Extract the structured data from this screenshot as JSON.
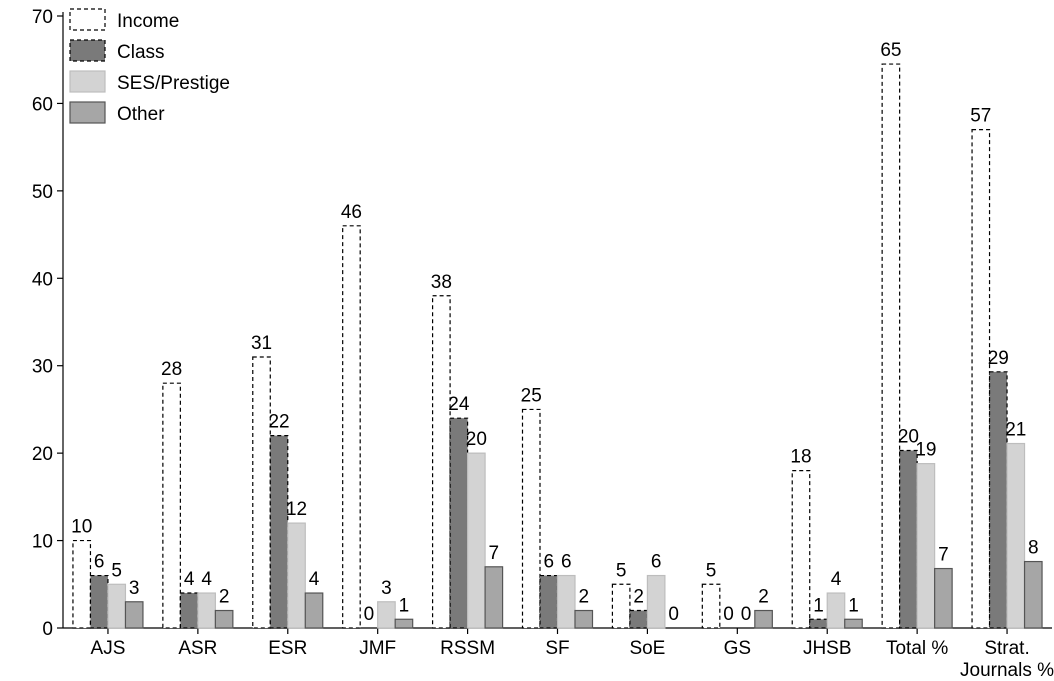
{
  "chart_data": {
    "type": "bar",
    "categories": [
      [
        "AJS"
      ],
      [
        "ASR"
      ],
      [
        "ESR"
      ],
      [
        "JMF"
      ],
      [
        "RSSM"
      ],
      [
        "SF"
      ],
      [
        "SoE"
      ],
      [
        "GS"
      ],
      [
        "JHSB"
      ],
      [
        "Total %"
      ],
      [
        "Strat.",
        "Journals %"
      ]
    ],
    "series": [
      {
        "name": "Income",
        "values": [
          10,
          28,
          31,
          46,
          38,
          25,
          5,
          5,
          18,
          64.5,
          57
        ],
        "labels": [
          "10",
          "28",
          "31",
          "46",
          "38",
          "25",
          "5",
          "5",
          "18",
          "65",
          "57"
        ]
      },
      {
        "name": "Class",
        "values": [
          6,
          4,
          22,
          0,
          24,
          6,
          2,
          0,
          1,
          20.3,
          29.3
        ],
        "labels": [
          "6",
          "4",
          "22",
          "0",
          "24",
          "6",
          "2",
          "0",
          "1",
          "20",
          "29"
        ]
      },
      {
        "name": "SES/Prestige",
        "values": [
          5,
          4,
          12,
          3,
          20,
          6,
          6,
          0,
          4,
          18.8,
          21.1
        ],
        "labels": [
          "5",
          "4",
          "12",
          "3",
          "20",
          "6",
          "6",
          "0",
          "4",
          "19",
          "21"
        ]
      },
      {
        "name": "Other",
        "values": [
          3,
          2,
          4,
          1,
          7,
          2,
          0,
          2,
          1,
          6.8,
          7.6
        ],
        "labels": [
          "3",
          "2",
          "4",
          "1",
          "7",
          "2",
          "0",
          "2",
          "1",
          "7",
          "8"
        ]
      }
    ],
    "ylim": [
      0,
      70
    ],
    "yticks": [
      0,
      10,
      20,
      30,
      40,
      50,
      60,
      70
    ],
    "legend_position": "top-left",
    "grid": false,
    "colors": {
      "Income": "#ffffff",
      "Class": "#7a7a7a",
      "SES/Prestige": "#d3d3d3",
      "Other": "#a6a6a6"
    }
  }
}
